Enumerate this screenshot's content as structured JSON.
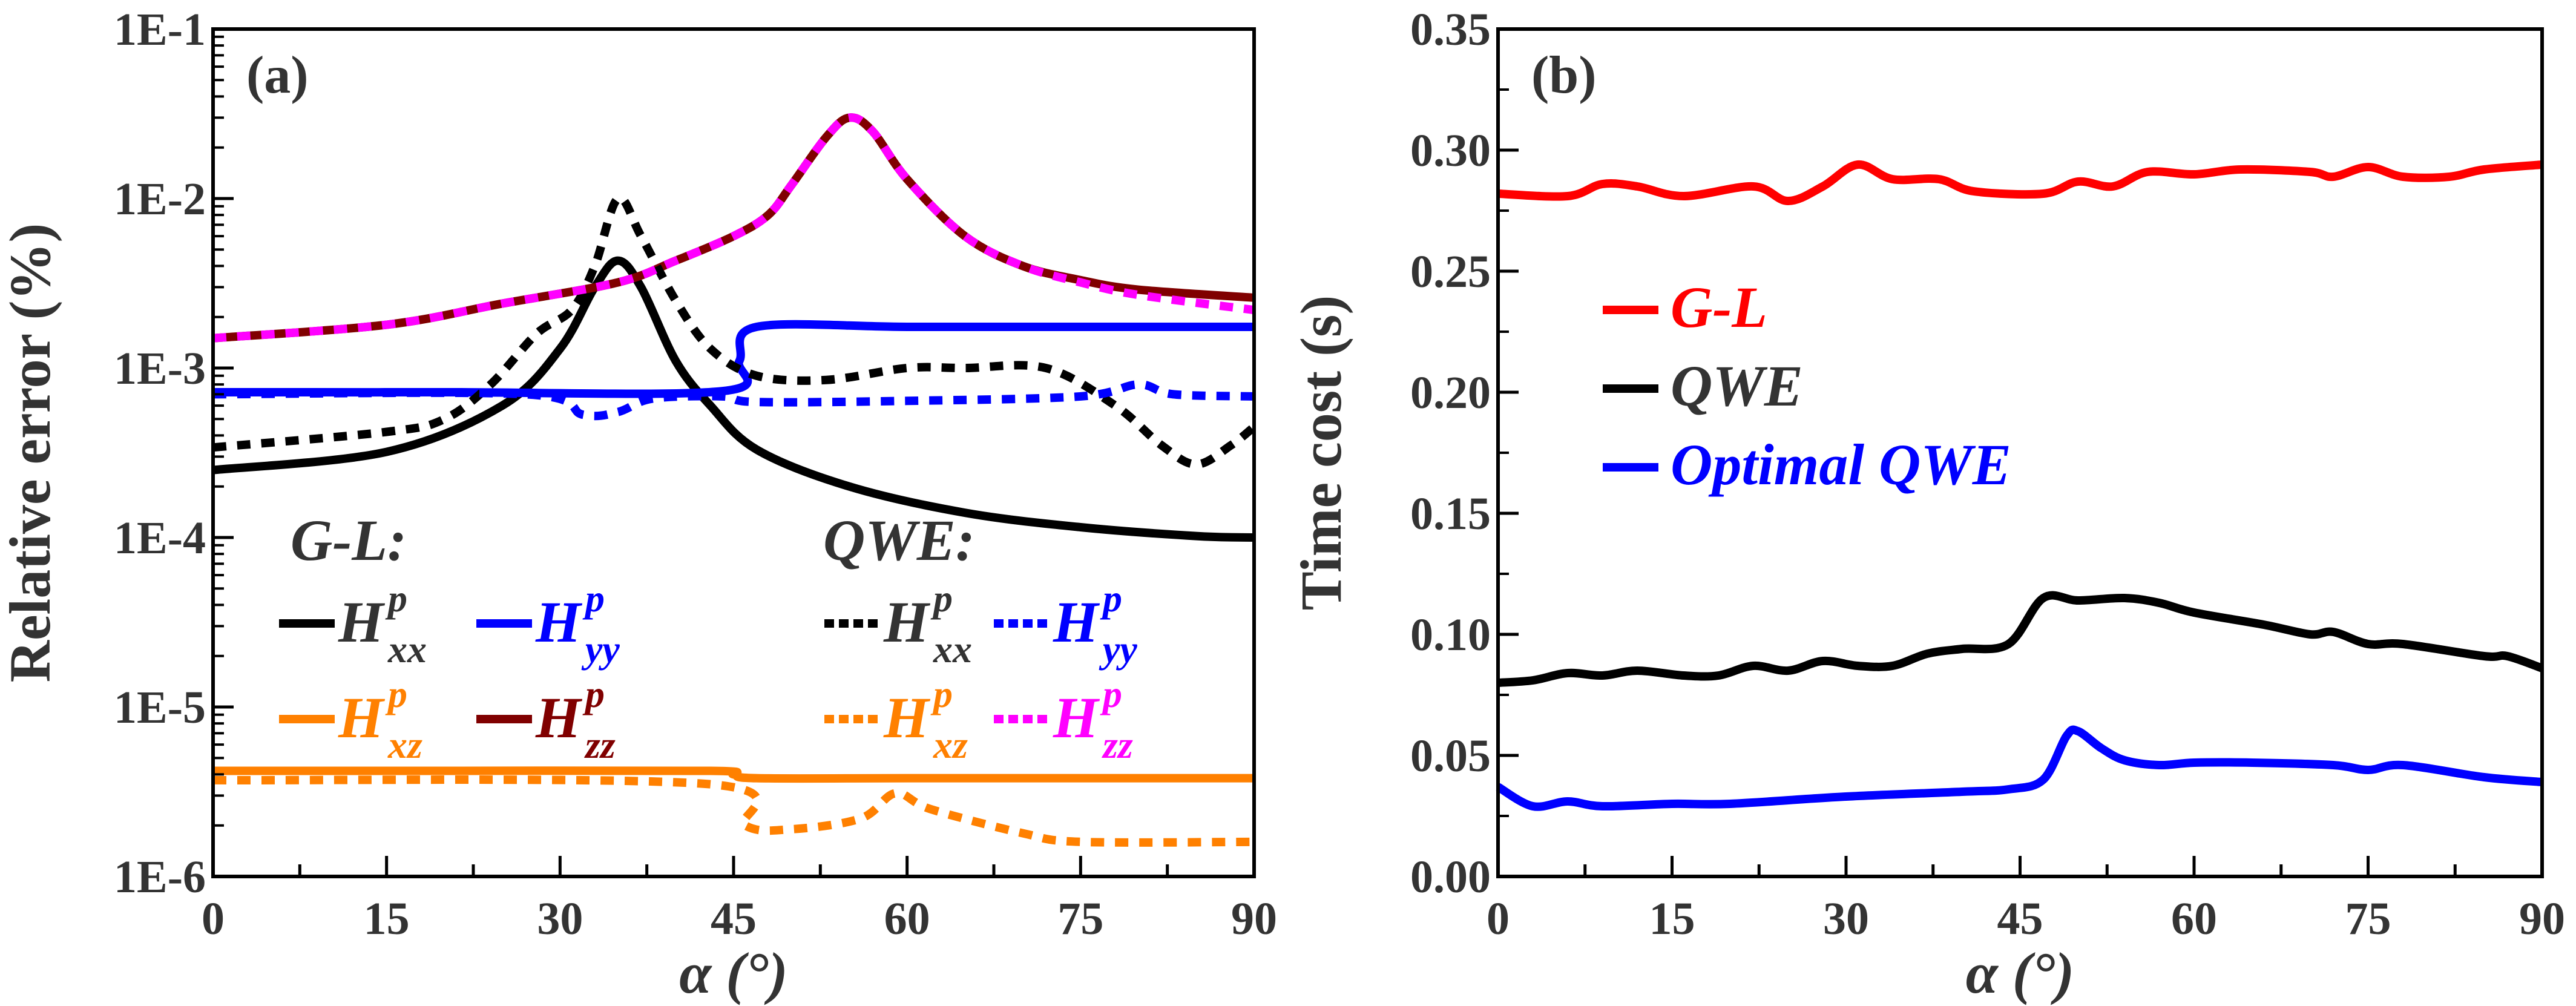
{
  "chart_data": [
    {
      "type": "line",
      "panel_label": "(a)",
      "xlabel": "α (°)",
      "ylabel": "Relative error (%)",
      "xlim": [
        0,
        90
      ],
      "xticks": [
        0,
        15,
        30,
        45,
        60,
        75,
        90
      ],
      "ylim": [
        1e-06,
        0.1
      ],
      "yscale": "log",
      "yticks": [
        1e-06,
        1e-05,
        0.0001,
        0.001,
        0.01,
        0.1
      ],
      "ytick_labels": [
        "1E-6",
        "1E-5",
        "1E-4",
        "1E-3",
        "1E-2",
        "1E-1"
      ],
      "grid": false,
      "legend_placement": "bottom-center",
      "legend_groups": [
        "G-L:",
        "QWE:"
      ],
      "series": [
        {
          "group": "G-L",
          "base": "H",
          "sup": "p",
          "sub": "xx",
          "color": "#000000",
          "style": "solid",
          "x": [
            0,
            15,
            25,
            30,
            33,
            35,
            37,
            40,
            43,
            47,
            55,
            65,
            75,
            85,
            90
          ],
          "y": [
            0.00025,
            0.00032,
            0.0006,
            0.0013,
            0.003,
            0.0043,
            0.003,
            0.0011,
            0.0006,
            0.00033,
            0.0002,
            0.00014,
            0.000115,
            0.000102,
            0.0001
          ]
        },
        {
          "group": "G-L",
          "base": "H",
          "sup": "p",
          "sub": "yy",
          "color": "#0000ff",
          "style": "solid",
          "x": [
            0,
            20,
            44,
            45.5,
            47,
            60,
            75,
            90
          ],
          "y": [
            0.00072,
            0.00072,
            0.00073,
            0.0011,
            0.00175,
            0.00175,
            0.00175,
            0.00175
          ]
        },
        {
          "group": "G-L",
          "base": "H",
          "sup": "p",
          "sub": "xz",
          "color": "#ff8000",
          "style": "solid",
          "x": [
            0,
            20,
            43,
            45,
            47,
            60,
            75,
            90
          ],
          "y": [
            4.2e-06,
            4.2e-06,
            4.2e-06,
            4e-06,
            3.8e-06,
            3.8e-06,
            3.8e-06,
            3.8e-06
          ]
        },
        {
          "group": "G-L",
          "base": "H",
          "sup": "p",
          "sub": "zz",
          "color": "#800000",
          "style": "solid",
          "x": [
            0,
            15,
            25,
            35,
            40,
            45,
            48,
            50,
            53,
            55,
            57,
            60,
            65,
            70,
            75,
            80,
            90
          ],
          "y": [
            0.0015,
            0.0018,
            0.0024,
            0.0032,
            0.0043,
            0.006,
            0.008,
            0.012,
            0.023,
            0.03,
            0.025,
            0.013,
            0.006,
            0.004,
            0.0033,
            0.0029,
            0.0026
          ]
        },
        {
          "group": "QWE",
          "base": "H",
          "sup": "p",
          "sub": "xx",
          "color": "#000000",
          "style": "dotted",
          "x": [
            0,
            15,
            20,
            24,
            28,
            31,
            33,
            35,
            37,
            40,
            43,
            47,
            53,
            60,
            65,
            72,
            78,
            82,
            85,
            88,
            90
          ],
          "y": [
            0.00034,
            0.00042,
            0.0005,
            0.0008,
            0.0016,
            0.0022,
            0.004,
            0.01,
            0.006,
            0.0025,
            0.0013,
            0.0009,
            0.00085,
            0.001,
            0.001,
            0.001,
            0.0006,
            0.00035,
            0.00027,
            0.00035,
            0.00045
          ]
        },
        {
          "group": "QWE",
          "base": "H",
          "sup": "p",
          "sub": "yy",
          "color": "#0000ff",
          "style": "dotted",
          "x": [
            0,
            27,
            32,
            35,
            38,
            44,
            47,
            60,
            75,
            80,
            83,
            90
          ],
          "y": [
            0.0007,
            0.0007,
            0.00053,
            0.00055,
            0.00066,
            0.00068,
            0.00063,
            0.00064,
            0.00068,
            0.0008,
            0.0007,
            0.00068
          ]
        },
        {
          "group": "QWE",
          "base": "H",
          "sup": "p",
          "sub": "xz",
          "color": "#ff8000",
          "style": "dotted",
          "x": [
            0,
            43,
            46,
            50,
            56,
            59,
            62,
            70,
            75,
            90
          ],
          "y": [
            3.7e-06,
            3.5e-06,
            2e-06,
            1.9e-06,
            2.2e-06,
            3.1e-06,
            2.5e-06,
            1.8e-06,
            1.6e-06,
            1.6e-06
          ]
        },
        {
          "group": "QWE",
          "base": "H",
          "sup": "p",
          "sub": "zz",
          "color": "#ff00ff",
          "style": "dotted",
          "x": [
            0,
            15,
            25,
            35,
            40,
            45,
            48,
            50,
            53,
            55,
            57,
            60,
            65,
            70,
            75,
            80,
            90
          ],
          "y": [
            0.0015,
            0.0018,
            0.0024,
            0.0032,
            0.0043,
            0.006,
            0.008,
            0.012,
            0.023,
            0.03,
            0.025,
            0.013,
            0.006,
            0.004,
            0.0032,
            0.0027,
            0.0022
          ]
        }
      ]
    },
    {
      "type": "line",
      "panel_label": "(b)",
      "xlabel": "α (°)",
      "ylabel": "Time cost (s)",
      "xlim": [
        0,
        90
      ],
      "xticks": [
        0,
        15,
        30,
        45,
        60,
        75,
        90
      ],
      "ylim": [
        0,
        0.35
      ],
      "yticks": [
        0,
        0.05,
        0.1,
        0.15,
        0.2,
        0.25,
        0.3,
        0.35
      ],
      "ytick_labels": [
        "0.00",
        "0.05",
        "0.10",
        "0.15",
        "0.20",
        "0.25",
        "0.30",
        "0.35"
      ],
      "grid": false,
      "legend_placement": "center-left",
      "series": [
        {
          "name": "G-L",
          "color": "#ff0000",
          "x": [
            0,
            6,
            9,
            12,
            16,
            22,
            25,
            28,
            31,
            34,
            38,
            41,
            47,
            50,
            53,
            56,
            60,
            64,
            70,
            72,
            75,
            78,
            82,
            85,
            90
          ],
          "y": [
            0.282,
            0.281,
            0.286,
            0.285,
            0.281,
            0.285,
            0.279,
            0.285,
            0.294,
            0.288,
            0.288,
            0.283,
            0.282,
            0.287,
            0.285,
            0.291,
            0.29,
            0.292,
            0.291,
            0.289,
            0.293,
            0.289,
            0.289,
            0.292,
            0.294
          ]
        },
        {
          "name": "QWE",
          "color": "#000000",
          "x": [
            0,
            3,
            6,
            9,
            12,
            16,
            19,
            22,
            25,
            28,
            31,
            34,
            37,
            40,
            44,
            47,
            50,
            54,
            57,
            60,
            66,
            70,
            72,
            75,
            78,
            85,
            87,
            90
          ],
          "y": [
            0.08,
            0.081,
            0.084,
            0.083,
            0.085,
            0.083,
            0.083,
            0.087,
            0.085,
            0.089,
            0.087,
            0.087,
            0.092,
            0.094,
            0.096,
            0.115,
            0.114,
            0.115,
            0.113,
            0.109,
            0.104,
            0.1,
            0.101,
            0.096,
            0.096,
            0.091,
            0.091,
            0.086
          ]
        },
        {
          "name": "Optimal QWE",
          "color": "#0000ff",
          "x": [
            0,
            3,
            6,
            9,
            15,
            20,
            30,
            40,
            44,
            47,
            49,
            50,
            52,
            54,
            57,
            60,
            65,
            72,
            75,
            78,
            85,
            90
          ],
          "y": [
            0.037,
            0.029,
            0.031,
            0.029,
            0.03,
            0.03,
            0.033,
            0.035,
            0.036,
            0.04,
            0.058,
            0.06,
            0.053,
            0.048,
            0.046,
            0.047,
            0.047,
            0.046,
            0.044,
            0.046,
            0.041,
            0.039
          ]
        }
      ]
    }
  ]
}
